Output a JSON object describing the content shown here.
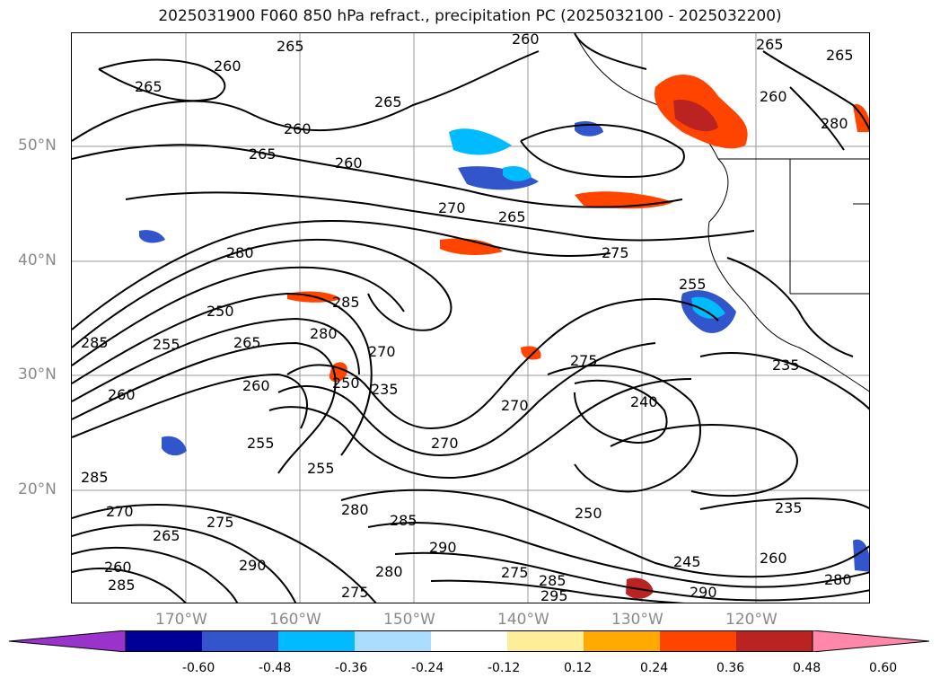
{
  "title": "2025031900 F060 850 hPa refract., precipitation PC (2025032100 - 2025032200)",
  "axes": {
    "lat_labels": [
      "50°N",
      "40°N",
      "30°N",
      "20°N"
    ],
    "lon_labels": [
      "170°W",
      "160°W",
      "150°W",
      "140°W",
      "130°W",
      "120°W"
    ]
  },
  "contour_labels": [
    "265",
    "260",
    "260",
    "265",
    "265",
    "260",
    "265",
    "260",
    "270",
    "265",
    "280",
    "275",
    "285",
    "250",
    "255",
    "265",
    "285",
    "280",
    "270",
    "260",
    "250",
    "255",
    "235",
    "275",
    "255",
    "270",
    "240",
    "235",
    "260",
    "285",
    "255",
    "270",
    "275",
    "285",
    "290",
    "275",
    "280",
    "290",
    "295",
    "270",
    "280",
    "265",
    "260",
    "245",
    "260",
    "290",
    "280",
    "235",
    "275",
    "285",
    "265",
    "285",
    "260",
    "265",
    "250",
    "280"
  ],
  "colorbar": {
    "colors": [
      "#9933cc",
      "#000099",
      "#3355cc",
      "#00bbff",
      "#aaddff",
      "#ffffff",
      "#ffee99",
      "#ffaa00",
      "#ff4400",
      "#bb2222",
      "#ff88aa"
    ],
    "labels": [
      "-0.60",
      "-0.48",
      "-0.36",
      "-0.24",
      "-0.12",
      "0.12",
      "0.24",
      "0.36",
      "0.48",
      "0.60"
    ]
  }
}
